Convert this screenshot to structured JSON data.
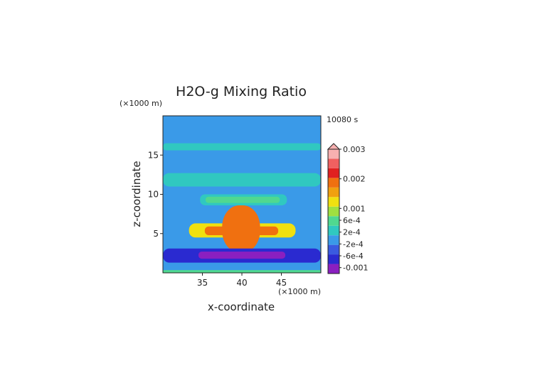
{
  "chart_data": {
    "type": "heatmap",
    "title": "H2O-g Mixing Ratio",
    "time_label": "10080 s",
    "xlabel": "x-coordinate",
    "ylabel": "z-coordinate",
    "x_unit": "(×1000 m)",
    "y_unit": "(×1000 m)",
    "xlim": [
      30,
      50
    ],
    "ylim": [
      0,
      20
    ],
    "x_ticks": [
      35,
      40,
      45
    ],
    "y_ticks": [
      5,
      10,
      15
    ],
    "colorbar": {
      "tick_labels": [
        "0.003",
        "0.002",
        "0.001",
        "6e-4",
        "2e-4",
        "-2e-4",
        "-6e-4",
        "-0.001"
      ],
      "tick_values": [
        0.003,
        0.002,
        0.001,
        0.0006,
        0.0002,
        -0.0002,
        -0.0006,
        -0.001
      ],
      "vmin": -0.0012,
      "vmax": 0.003,
      "colors": [
        "#8a1fc0",
        "#2a2ad0",
        "#3a5ae0",
        "#3a9ae8",
        "#30c8c0",
        "#50d890",
        "#a0e040",
        "#f0e010",
        "#f0a010",
        "#f07010",
        "#e02020",
        "#f06060",
        "#f8b0b0"
      ]
    },
    "background_value": -0.0001,
    "features": [
      {
        "name": "upper-band",
        "x0": 30,
        "x1": 50,
        "z0": 15.6,
        "z1": 16.5,
        "value": 0.0001
      },
      {
        "name": "mid-band",
        "x0": 30,
        "x1": 50,
        "z0": 11.0,
        "z1": 12.7,
        "value": 0.0001
      },
      {
        "name": "anvil-outer",
        "x0": 34.7,
        "x1": 45.7,
        "z0": 8.6,
        "z1": 10.0,
        "value": 0.0003
      },
      {
        "name": "anvil-inner",
        "x0": 35.4,
        "x1": 44.8,
        "z0": 8.9,
        "z1": 9.7,
        "value": 0.0006
      },
      {
        "name": "core-orange",
        "x0": 33.3,
        "x1": 46.8,
        "z0": 4.5,
        "z1": 6.3,
        "value": 0.0012
      },
      {
        "name": "core-red",
        "x0": 35.3,
        "x1": 44.6,
        "z0": 4.8,
        "z1": 5.9,
        "value": 0.0018
      },
      {
        "name": "stem",
        "x0": 37.5,
        "x1": 42.3,
        "z0": 2.6,
        "z1": 8.6,
        "value": 0.0018
      },
      {
        "name": "low-blue",
        "x0": 30,
        "x1": 50,
        "z0": 1.3,
        "z1": 3.1,
        "value": -0.0006
      },
      {
        "name": "low-dark",
        "x0": 34.5,
        "x1": 45.5,
        "z0": 1.8,
        "z1": 2.7,
        "value": -0.0009
      },
      {
        "name": "surface-layer",
        "x0": 30,
        "x1": 50,
        "z0": 0.0,
        "z1": 0.35,
        "value": 0.0006
      }
    ]
  }
}
